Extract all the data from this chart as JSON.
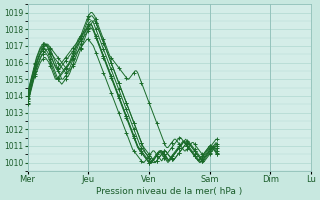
{
  "bg_color": "#c8e8e0",
  "plot_bg_color": "#d4ede8",
  "line_color": "#1a6b2a",
  "grid_color": "#b0d8d0",
  "yticks": [
    1010,
    1011,
    1012,
    1013,
    1014,
    1015,
    1016,
    1017,
    1018,
    1019
  ],
  "ylim": [
    1009.5,
    1019.5
  ],
  "xlabel": "Pression niveau de la mer( hPa )",
  "day_labels": [
    "Mer",
    "Jeu",
    "Ven",
    "Sam",
    "Dim",
    "Lu"
  ],
  "day_positions": [
    0,
    48,
    96,
    144,
    192,
    224
  ],
  "total_points": 240,
  "series": [
    [
      1013.8,
      1014.0,
      1014.3,
      1014.6,
      1014.9,
      1015.2,
      1015.5,
      1015.8,
      1016.1,
      1016.3,
      1016.5,
      1016.7,
      1016.8,
      1016.9,
      1017.0,
      1017.1,
      1017.1,
      1017.0,
      1016.9,
      1016.8,
      1016.7,
      1016.6,
      1016.5,
      1016.4,
      1016.3,
      1016.2,
      1016.1,
      1016.0,
      1015.9,
      1015.8,
      1015.7,
      1015.7,
      1015.8,
      1015.9,
      1016.0,
      1016.2,
      1016.4,
      1016.6,
      1016.8,
      1017.0,
      1017.2,
      1017.4,
      1017.6,
      1017.8,
      1018.0,
      1018.2,
      1018.4,
      1018.6,
      1018.8,
      1018.9,
      1019.0,
      1019.0,
      1018.9,
      1018.8,
      1018.6,
      1018.4,
      1018.2,
      1018.0,
      1017.8,
      1017.6,
      1017.4,
      1017.2,
      1017.0,
      1016.8,
      1016.6,
      1016.4,
      1016.3,
      1016.2,
      1016.1,
      1016.0,
      1015.9,
      1015.8,
      1015.7,
      1015.6,
      1015.5,
      1015.4,
      1015.3,
      1015.2,
      1015.1,
      1015.0,
      1015.0,
      1015.1,
      1015.2,
      1015.3,
      1015.4,
      1015.5,
      1015.5,
      1015.4,
      1015.2,
      1015.0,
      1014.8,
      1014.6,
      1014.4,
      1014.2,
      1014.0,
      1013.8,
      1013.6,
      1013.4,
      1013.2,
      1013.0,
      1012.8,
      1012.6,
      1012.4,
      1012.2,
      1012.0,
      1011.8,
      1011.6,
      1011.4,
      1011.2,
      1011.0,
      1010.9,
      1010.9,
      1011.0,
      1011.1,
      1011.2,
      1011.3,
      1011.4,
      1011.4,
      1011.3,
      1011.2,
      1011.1,
      1011.0,
      1010.9,
      1010.8,
      1010.7,
      1010.7,
      1010.8,
      1010.9,
      1011.0,
      1011.1,
      1011.2,
      1011.2,
      1011.1,
      1011.0,
      1010.9,
      1010.8,
      1010.7,
      1010.6,
      1010.5,
      1010.4,
      1010.5,
      1010.6,
      1010.7,
      1010.8,
      1010.9,
      1011.0,
      1011.1,
      1011.2,
      1011.3,
      1011.4,
      1011.4,
      1011.3,
      1011.2,
      1011.1,
      1011.0,
      1010.9
    ],
    [
      1013.6,
      1013.9,
      1014.2,
      1014.5,
      1014.8,
      1015.1,
      1015.3,
      1015.6,
      1015.8,
      1016.0,
      1016.2,
      1016.4,
      1016.5,
      1016.6,
      1016.7,
      1016.8,
      1016.8,
      1016.7,
      1016.6,
      1016.5,
      1016.4,
      1016.3,
      1016.2,
      1016.1,
      1016.0,
      1015.9,
      1015.8,
      1015.7,
      1015.6,
      1015.5,
      1015.4,
      1015.4,
      1015.5,
      1015.6,
      1015.8,
      1016.0,
      1016.2,
      1016.4,
      1016.6,
      1016.8,
      1017.0,
      1017.2,
      1017.4,
      1017.6,
      1017.8,
      1018.0,
      1018.2,
      1018.4,
      1018.6,
      1018.7,
      1018.8,
      1018.8,
      1018.7,
      1018.6,
      1018.4,
      1018.2,
      1018.0,
      1017.8,
      1017.6,
      1017.4,
      1017.2,
      1017.0,
      1016.8,
      1016.6,
      1016.4,
      1016.2,
      1016.0,
      1015.8,
      1015.6,
      1015.4,
      1015.2,
      1015.0,
      1014.8,
      1014.6,
      1014.4,
      1014.2,
      1014.0,
      1013.8,
      1013.6,
      1013.4,
      1013.2,
      1013.0,
      1012.8,
      1012.6,
      1012.4,
      1012.2,
      1012.0,
      1011.8,
      1011.6,
      1011.4,
      1011.2,
      1011.0,
      1010.8,
      1010.6,
      1010.5,
      1010.4,
      1010.3,
      1010.2,
      1010.1,
      1010.1,
      1010.2,
      1010.3,
      1010.4,
      1010.5,
      1010.6,
      1010.6,
      1010.5,
      1010.4,
      1010.3,
      1010.2,
      1010.1,
      1010.0,
      1010.1,
      1010.2,
      1010.3,
      1010.4,
      1010.5,
      1010.6,
      1010.7,
      1010.8,
      1010.9,
      1011.0,
      1011.1,
      1011.2,
      1011.2,
      1011.1,
      1011.0,
      1010.9,
      1010.8,
      1010.7,
      1010.6,
      1010.5,
      1010.4,
      1010.3,
      1010.2,
      1010.1,
      1010.2,
      1010.3,
      1010.4,
      1010.5,
      1010.6,
      1010.7,
      1010.8,
      1010.9,
      1011.0,
      1011.0,
      1010.9,
      1010.8,
      1010.7,
      1010.6,
      1010.5,
      1010.4
    ],
    [
      1013.9,
      1014.2,
      1014.5,
      1014.8,
      1015.1,
      1015.4,
      1015.7,
      1016.0,
      1016.2,
      1016.4,
      1016.6,
      1016.8,
      1016.9,
      1017.0,
      1017.1,
      1017.1,
      1017.0,
      1016.9,
      1016.8,
      1016.6,
      1016.4,
      1016.2,
      1016.0,
      1015.8,
      1015.6,
      1015.4,
      1015.2,
      1015.0,
      1015.0,
      1015.1,
      1015.2,
      1015.3,
      1015.4,
      1015.5,
      1015.6,
      1015.7,
      1015.8,
      1015.9,
      1016.0,
      1016.2,
      1016.4,
      1016.6,
      1016.8,
      1017.0,
      1017.2,
      1017.4,
      1017.6,
      1017.8,
      1018.0,
      1018.2,
      1018.3,
      1018.4,
      1018.5,
      1018.5,
      1018.4,
      1018.2,
      1018.0,
      1017.8,
      1017.6,
      1017.4,
      1017.2,
      1017.0,
      1016.8,
      1016.6,
      1016.4,
      1016.2,
      1016.0,
      1015.8,
      1015.6,
      1015.4,
      1015.2,
      1015.0,
      1014.8,
      1014.6,
      1014.4,
      1014.2,
      1014.0,
      1013.8,
      1013.6,
      1013.4,
      1013.2,
      1013.0,
      1012.8,
      1012.6,
      1012.4,
      1012.2,
      1012.0,
      1011.8,
      1011.6,
      1011.4,
      1011.2,
      1011.0,
      1010.9,
      1010.8,
      1010.7,
      1010.6,
      1010.5,
      1010.4,
      1010.3,
      1010.2,
      1010.1,
      1010.0,
      1010.1,
      1010.2,
      1010.3,
      1010.4,
      1010.5,
      1010.6,
      1010.7,
      1010.7,
      1010.6,
      1010.5,
      1010.4,
      1010.3,
      1010.2,
      1010.1,
      1010.2,
      1010.3,
      1010.4,
      1010.5,
      1010.6,
      1010.7,
      1010.8,
      1010.9,
      1011.0,
      1011.1,
      1011.2,
      1011.2,
      1011.1,
      1011.0,
      1010.9,
      1010.8,
      1010.7,
      1010.6,
      1010.5,
      1010.4,
      1010.3,
      1010.2,
      1010.1,
      1010.0,
      1010.1,
      1010.2,
      1010.3,
      1010.4,
      1010.5,
      1010.6,
      1010.7,
      1010.8,
      1010.9,
      1011.0,
      1010.9,
      1010.8,
      1010.7,
      1010.6,
      1010.5
    ],
    [
      1014.0,
      1014.3,
      1014.6,
      1014.9,
      1015.2,
      1015.5,
      1015.7,
      1016.0,
      1016.2,
      1016.4,
      1016.5,
      1016.6,
      1016.7,
      1016.8,
      1016.8,
      1016.7,
      1016.6,
      1016.4,
      1016.2,
      1016.0,
      1015.8,
      1015.6,
      1015.4,
      1015.2,
      1015.0,
      1014.9,
      1014.8,
      1014.7,
      1014.8,
      1014.9,
      1015.0,
      1015.1,
      1015.2,
      1015.3,
      1015.5,
      1015.7,
      1015.9,
      1016.1,
      1016.3,
      1016.5,
      1016.7,
      1016.9,
      1017.1,
      1017.3,
      1017.5,
      1017.7,
      1017.9,
      1018.1,
      1018.3,
      1018.4,
      1018.5,
      1018.5,
      1018.4,
      1018.2,
      1018.0,
      1017.8,
      1017.6,
      1017.4,
      1017.2,
      1017.0,
      1016.8,
      1016.6,
      1016.4,
      1016.2,
      1016.0,
      1015.8,
      1015.6,
      1015.4,
      1015.2,
      1015.0,
      1014.8,
      1014.6,
      1014.4,
      1014.2,
      1014.0,
      1013.8,
      1013.6,
      1013.4,
      1013.2,
      1013.0,
      1012.8,
      1012.6,
      1012.4,
      1012.2,
      1012.0,
      1011.8,
      1011.6,
      1011.4,
      1011.2,
      1011.0,
      1010.9,
      1010.8,
      1010.7,
      1010.6,
      1010.5,
      1010.4,
      1010.3,
      1010.2,
      1010.1,
      1010.0,
      1010.0,
      1010.0,
      1010.1,
      1010.2,
      1010.3,
      1010.4,
      1010.5,
      1010.6,
      1010.7,
      1010.7,
      1010.6,
      1010.5,
      1010.4,
      1010.3,
      1010.2,
      1010.1,
      1010.2,
      1010.3,
      1010.4,
      1010.5,
      1010.6,
      1010.7,
      1010.8,
      1010.9,
      1011.0,
      1011.1,
      1011.2,
      1011.3,
      1011.2,
      1011.1,
      1011.0,
      1010.9,
      1010.8,
      1010.7,
      1010.6,
      1010.5,
      1010.4,
      1010.3,
      1010.2,
      1010.1,
      1010.2,
      1010.3,
      1010.4,
      1010.5,
      1010.6,
      1010.7,
      1010.8,
      1010.9,
      1011.0,
      1011.1,
      1011.0,
      1010.9,
      1010.8,
      1010.7,
      1010.6
    ],
    [
      1013.7,
      1014.0,
      1014.3,
      1014.6,
      1014.9,
      1015.2,
      1015.5,
      1015.7,
      1015.9,
      1016.1,
      1016.3,
      1016.4,
      1016.5,
      1016.6,
      1016.6,
      1016.5,
      1016.4,
      1016.2,
      1016.0,
      1015.8,
      1015.6,
      1015.4,
      1015.2,
      1015.0,
      1015.0,
      1015.1,
      1015.2,
      1015.3,
      1015.4,
      1015.5,
      1015.6,
      1015.7,
      1015.8,
      1016.0,
      1016.2,
      1016.4,
      1016.6,
      1016.8,
      1017.0,
      1017.2,
      1017.4,
      1017.5,
      1017.6,
      1017.7,
      1017.8,
      1017.9,
      1018.0,
      1018.1,
      1018.2,
      1018.3,
      1018.3,
      1018.2,
      1018.0,
      1017.8,
      1017.6,
      1017.4,
      1017.2,
      1017.0,
      1016.8,
      1016.6,
      1016.4,
      1016.2,
      1016.0,
      1015.8,
      1015.6,
      1015.4,
      1015.2,
      1015.0,
      1014.8,
      1014.6,
      1014.4,
      1014.2,
      1014.0,
      1013.8,
      1013.6,
      1013.4,
      1013.2,
      1013.0,
      1012.8,
      1012.6,
      1012.4,
      1012.2,
      1012.0,
      1011.8,
      1011.6,
      1011.4,
      1011.2,
      1011.0,
      1010.8,
      1010.7,
      1010.6,
      1010.5,
      1010.4,
      1010.3,
      1010.2,
      1010.1,
      1010.0,
      1010.0,
      1010.0,
      1010.1,
      1010.2,
      1010.3,
      1010.4,
      1010.5,
      1010.6,
      1010.7,
      1010.7,
      1010.6,
      1010.5,
      1010.4,
      1010.3,
      1010.2,
      1010.1,
      1010.2,
      1010.3,
      1010.4,
      1010.5,
      1010.6,
      1010.7,
      1010.8,
      1010.9,
      1011.0,
      1011.1,
      1011.2,
      1011.3,
      1011.4,
      1011.3,
      1011.2,
      1011.1,
      1011.0,
      1010.9,
      1010.8,
      1010.7,
      1010.6,
      1010.5,
      1010.4,
      1010.3,
      1010.2,
      1010.1,
      1010.2,
      1010.3,
      1010.4,
      1010.5,
      1010.6,
      1010.7,
      1010.8,
      1010.9,
      1011.0,
      1011.1,
      1011.2,
      1011.1,
      1011.0,
      1010.9,
      1010.8,
      1010.7
    ],
    [
      1013.5,
      1013.8,
      1014.1,
      1014.4,
      1014.7,
      1015.0,
      1015.2,
      1015.4,
      1015.6,
      1015.8,
      1016.0,
      1016.1,
      1016.2,
      1016.3,
      1016.3,
      1016.2,
      1016.1,
      1016.0,
      1015.8,
      1015.6,
      1015.4,
      1015.2,
      1015.0,
      1015.0,
      1015.1,
      1015.2,
      1015.3,
      1015.4,
      1015.5,
      1015.6,
      1015.7,
      1015.8,
      1015.9,
      1016.0,
      1016.1,
      1016.2,
      1016.3,
      1016.4,
      1016.5,
      1016.6,
      1016.7,
      1016.8,
      1016.9,
      1017.0,
      1017.1,
      1017.2,
      1017.3,
      1017.4,
      1017.4,
      1017.3,
      1017.2,
      1017.1,
      1017.0,
      1016.8,
      1016.6,
      1016.4,
      1016.2,
      1016.0,
      1015.8,
      1015.6,
      1015.4,
      1015.2,
      1015.0,
      1014.8,
      1014.6,
      1014.4,
      1014.2,
      1014.0,
      1013.8,
      1013.6,
      1013.4,
      1013.2,
      1013.0,
      1012.8,
      1012.6,
      1012.4,
      1012.2,
      1012.0,
      1011.8,
      1011.6,
      1011.4,
      1011.2,
      1011.0,
      1010.8,
      1010.7,
      1010.6,
      1010.5,
      1010.4,
      1010.3,
      1010.2,
      1010.1,
      1010.0,
      1010.0,
      1010.1,
      1010.2,
      1010.3,
      1010.4,
      1010.5,
      1010.6,
      1010.7,
      1010.7,
      1010.6,
      1010.5,
      1010.4,
      1010.3,
      1010.2,
      1010.1,
      1010.2,
      1010.3,
      1010.4,
      1010.5,
      1010.6,
      1010.7,
      1010.8,
      1010.9,
      1011.0,
      1011.1,
      1011.2,
      1011.3,
      1011.4,
      1011.5,
      1011.5,
      1011.4,
      1011.3,
      1011.2,
      1011.1,
      1011.0,
      1010.9,
      1010.8,
      1010.7,
      1010.6,
      1010.5,
      1010.4,
      1010.3,
      1010.2,
      1010.1,
      1010.2,
      1010.3,
      1010.4,
      1010.5,
      1010.6,
      1010.7,
      1010.8,
      1010.9,
      1011.0,
      1011.0,
      1010.9,
      1010.8,
      1010.7,
      1010.6,
      1010.5
    ],
    [
      1014.1,
      1014.4,
      1014.7,
      1015.0,
      1015.3,
      1015.6,
      1015.9,
      1016.2,
      1016.4,
      1016.6,
      1016.8,
      1016.9,
      1017.0,
      1017.1,
      1017.1,
      1017.0,
      1016.9,
      1016.7,
      1016.5,
      1016.3,
      1016.1,
      1015.9,
      1015.7,
      1015.6,
      1015.5,
      1015.6,
      1015.7,
      1015.8,
      1015.9,
      1016.0,
      1016.1,
      1016.2,
      1016.3,
      1016.4,
      1016.5,
      1016.6,
      1016.7,
      1016.8,
      1016.9,
      1017.0,
      1017.1,
      1017.2,
      1017.3,
      1017.4,
      1017.5,
      1017.6,
      1017.7,
      1017.8,
      1017.9,
      1018.0,
      1018.1,
      1018.0,
      1017.9,
      1017.7,
      1017.5,
      1017.3,
      1017.1,
      1016.9,
      1016.7,
      1016.5,
      1016.3,
      1016.1,
      1015.9,
      1015.7,
      1015.5,
      1015.3,
      1015.1,
      1014.9,
      1014.7,
      1014.5,
      1014.3,
      1014.1,
      1013.9,
      1013.7,
      1013.5,
      1013.3,
      1013.1,
      1012.9,
      1012.7,
      1012.5,
      1012.3,
      1012.1,
      1011.9,
      1011.7,
      1011.5,
      1011.3,
      1011.1,
      1010.9,
      1010.8,
      1010.7,
      1010.6,
      1010.5,
      1010.4,
      1010.3,
      1010.2,
      1010.1,
      1010.0,
      1010.0,
      1010.1,
      1010.2,
      1010.3,
      1010.4,
      1010.5,
      1010.6,
      1010.7,
      1010.7,
      1010.6,
      1010.5,
      1010.4,
      1010.3,
      1010.2,
      1010.1,
      1010.2,
      1010.3,
      1010.4,
      1010.5,
      1010.6,
      1010.7,
      1010.8,
      1010.9,
      1011.0,
      1011.1,
      1011.2,
      1011.3,
      1011.2,
      1011.1,
      1011.0,
      1010.9,
      1010.8,
      1010.7,
      1010.6,
      1010.5,
      1010.4,
      1010.3,
      1010.2,
      1010.1,
      1010.0,
      1010.1,
      1010.2,
      1010.3,
      1010.4,
      1010.5,
      1010.6,
      1010.7,
      1010.8,
      1010.9,
      1011.0,
      1010.9,
      1010.8,
      1010.7,
      1010.6,
      1010.5
    ],
    [
      1014.2,
      1014.5,
      1014.8,
      1015.1,
      1015.4,
      1015.7,
      1016.0,
      1016.3,
      1016.5,
      1016.7,
      1016.9,
      1017.0,
      1017.1,
      1017.2,
      1017.1,
      1017.0,
      1016.9,
      1016.7,
      1016.5,
      1016.3,
      1016.1,
      1015.9,
      1015.8,
      1015.7,
      1015.7,
      1015.8,
      1015.9,
      1016.0,
      1016.1,
      1016.2,
      1016.3,
      1016.4,
      1016.5,
      1016.6,
      1016.7,
      1016.8,
      1016.9,
      1017.0,
      1017.1,
      1017.2,
      1017.3,
      1017.4,
      1017.5,
      1017.6,
      1017.7,
      1017.8,
      1017.9,
      1018.0,
      1018.1,
      1018.2,
      1018.3,
      1018.2,
      1018.0,
      1017.8,
      1017.6,
      1017.4,
      1017.2,
      1017.0,
      1016.8,
      1016.6,
      1016.4,
      1016.2,
      1016.0,
      1015.8,
      1015.6,
      1015.4,
      1015.2,
      1015.0,
      1014.8,
      1014.6,
      1014.4,
      1014.2,
      1014.0,
      1013.8,
      1013.6,
      1013.4,
      1013.2,
      1013.0,
      1012.8,
      1012.6,
      1012.4,
      1012.2,
      1012.0,
      1011.8,
      1011.6,
      1011.4,
      1011.2,
      1011.0,
      1010.9,
      1010.8,
      1010.7,
      1010.6,
      1010.5,
      1010.4,
      1010.3,
      1010.2,
      1010.1,
      1010.0,
      1010.0,
      1010.1,
      1010.2,
      1010.3,
      1010.4,
      1010.5,
      1010.6,
      1010.7,
      1010.7,
      1010.6,
      1010.5,
      1010.4,
      1010.3,
      1010.2,
      1010.1,
      1010.2,
      1010.3,
      1010.4,
      1010.5,
      1010.6,
      1010.7,
      1010.8,
      1010.9,
      1011.0,
      1011.1,
      1011.2,
      1011.3,
      1011.2,
      1011.1,
      1011.0,
      1010.9,
      1010.8,
      1010.7,
      1010.6,
      1010.5,
      1010.4,
      1010.3,
      1010.2,
      1010.1,
      1010.0,
      1010.1,
      1010.2,
      1010.3,
      1010.4,
      1010.5,
      1010.6,
      1010.7,
      1010.8,
      1010.9,
      1011.0,
      1010.9,
      1010.8,
      1010.7,
      1010.6,
      1010.5
    ]
  ]
}
